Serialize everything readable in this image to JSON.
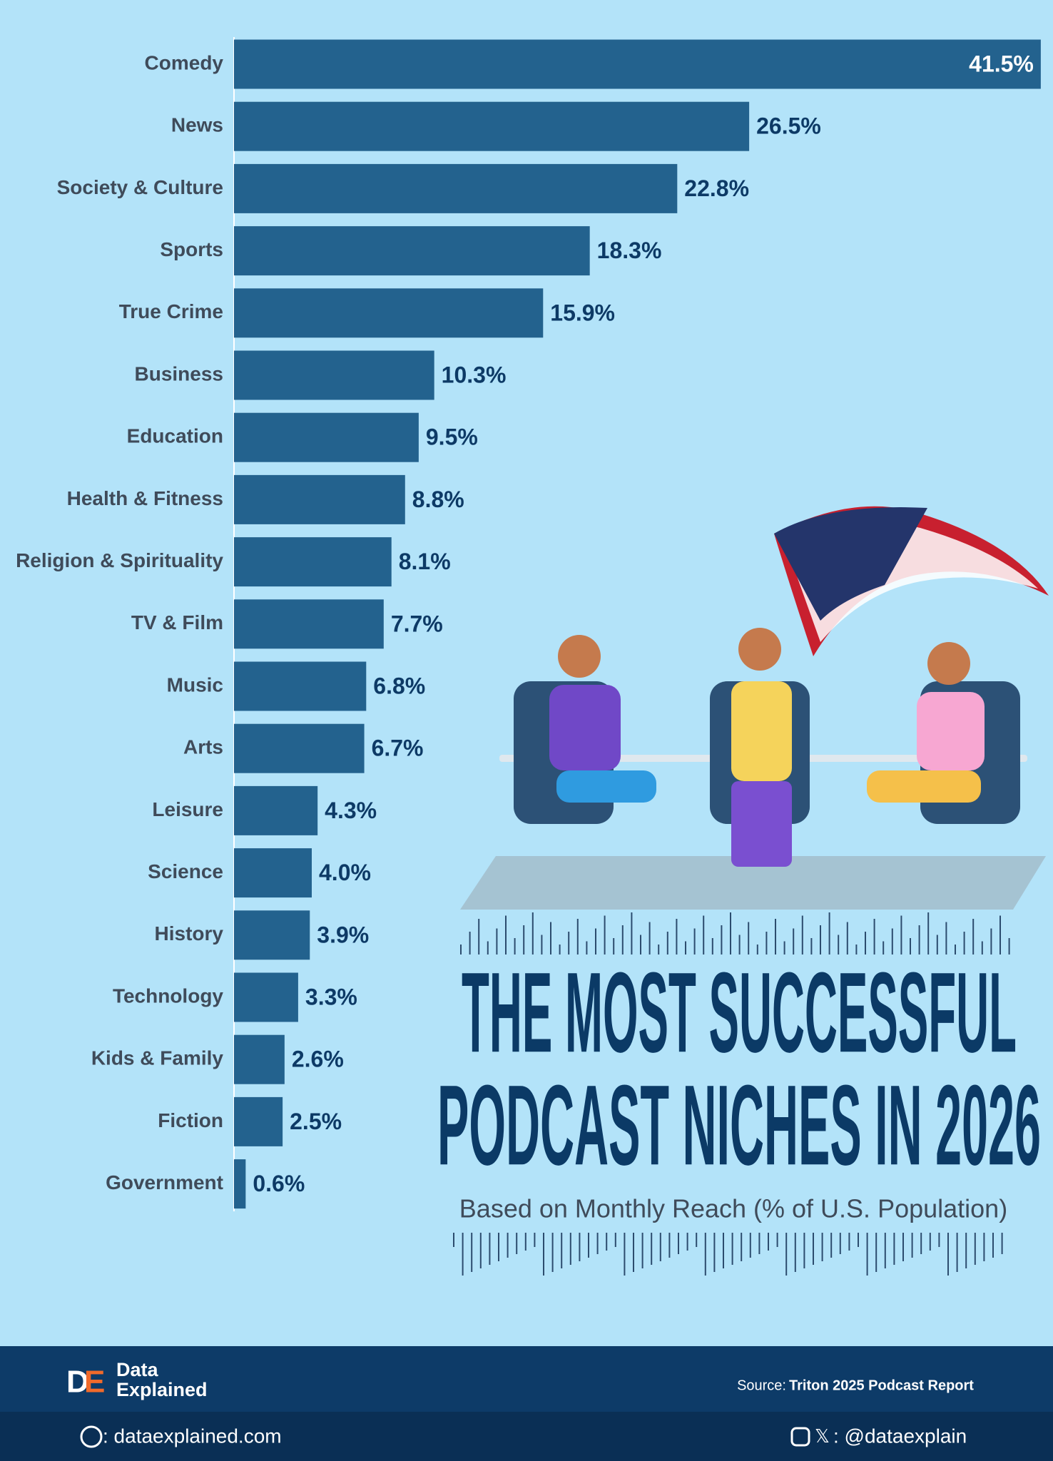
{
  "chart_data": {
    "type": "bar",
    "orientation": "horizontal",
    "title": [
      "THE MOST SUCCESSFUL",
      "PODCAST NICHES IN 2026"
    ],
    "subtitle": "Based on Monthly Reach (% of U.S. Population)",
    "categories": [
      "Comedy",
      "News",
      "Society & Culture",
      "Sports",
      "True Crime",
      "Business",
      "Education",
      "Health & Fitness",
      "Religion & Spirituality",
      "TV & Film",
      "Music",
      "Arts",
      "Leisure",
      "Science",
      "History",
      "Technology",
      "Kids & Family",
      "Fiction",
      "Government"
    ],
    "values": [
      41.5,
      26.5,
      22.8,
      18.3,
      15.9,
      10.3,
      9.5,
      8.8,
      8.1,
      7.7,
      6.8,
      6.7,
      4.3,
      4.0,
      3.9,
      3.3,
      2.6,
      2.5,
      0.6
    ],
    "value_labels": [
      "41.5%",
      "26.5%",
      "22.8%",
      "18.3%",
      "15.9%",
      "10.3%",
      "9.5%",
      "8.8%",
      "8.1%",
      "7.7%",
      "6.8%",
      "6.7%",
      "4.3%",
      "4.0%",
      "3.9%",
      "3.3%",
      "2.6%",
      "2.5%",
      "0.6%"
    ],
    "color": "#23628e"
  },
  "footer": {
    "brand": [
      "Data",
      "Explained"
    ],
    "source_label": "Source:",
    "source": "Triton 2025 Podcast Report",
    "website": ": dataexplained.com",
    "handle": ": @dataexplain"
  }
}
